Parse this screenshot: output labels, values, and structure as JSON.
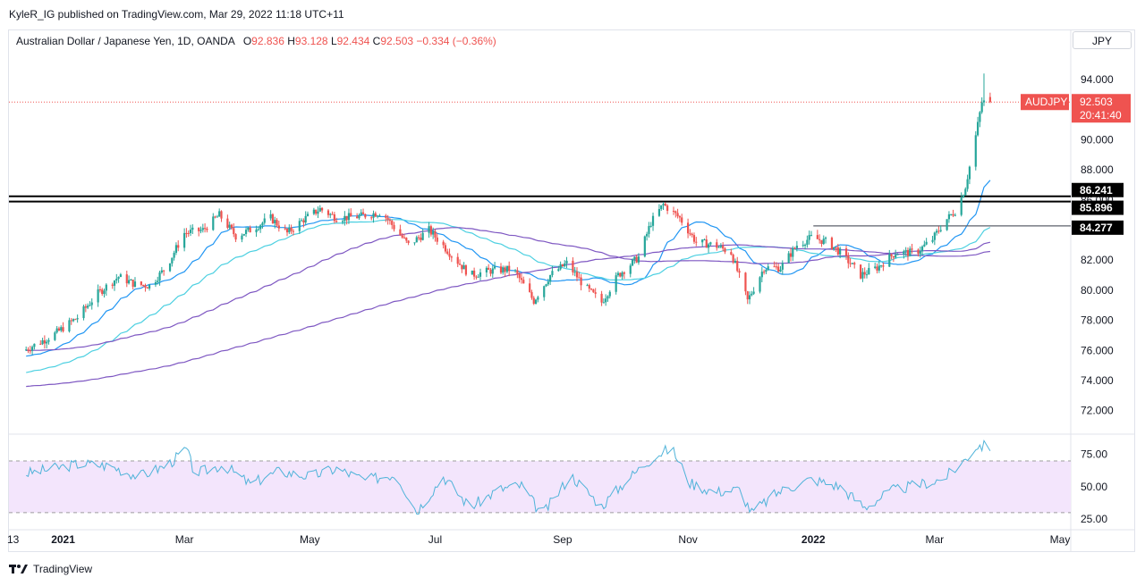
{
  "header": {
    "published": "KyleR_IG published on TradingView.com, Mar 29, 2022 11:18 UTC+11"
  },
  "legend": {
    "instrument": "Australian Dollar / Japanese Yen, 1D, OANDA",
    "o_label": "O",
    "o": "92.836",
    "h_label": "H",
    "h": "93.128",
    "l_label": "L",
    "l": "92.434",
    "c_label": "C",
    "c": "92.503",
    "change": "−0.334 (−0.36%)"
  },
  "currency_button": "JPY",
  "price_tag": {
    "symbol": "AUDJPY",
    "price": "92.503",
    "countdown": "20:41:40"
  },
  "footer": {
    "brand": "TradingView"
  },
  "colors": {
    "up": "#26a69a",
    "down": "#ef5350",
    "sma_fast": "#2196f3",
    "sma_mid": "#4dd0e1",
    "sma_slow": "#7e57c2",
    "rsi_line": "#4fb3d9",
    "rsi_band": "#f3e5fc"
  },
  "chart_data": [
    {
      "type": "candlestick",
      "title": "Australian Dollar / Japanese Yen, 1D, OANDA",
      "ylim": [
        70.5,
        95.9
      ],
      "y_ticks": [
        "94.000",
        "92.000",
        "90.000",
        "88.000",
        "86.000",
        "84.000",
        "82.000",
        "80.000",
        "78.000",
        "76.000",
        "74.000",
        "72.000"
      ],
      "x_ticks": [
        "13",
        "2021",
        "Mar",
        "May",
        "Jul",
        "Sep",
        "Nov",
        "2022",
        "Mar",
        "May"
      ],
      "horizontal_levels": [
        {
          "label": "86.241",
          "value": 86.241
        },
        {
          "label": "85.896",
          "value": 85.896
        },
        {
          "label": "84.277",
          "value": 84.277
        }
      ],
      "last_price": 92.503,
      "close_path": [
        [
          "2020-12-13",
          76.0
        ],
        [
          "2020-12-20",
          76.5
        ],
        [
          "2020-12-27",
          77.0
        ],
        [
          "2021-01-08",
          78.2
        ],
        [
          "2021-01-18",
          79.8
        ],
        [
          "2021-01-28",
          80.9
        ],
        [
          "2021-02-05",
          80.4
        ],
        [
          "2021-02-12",
          80.3
        ],
        [
          "2021-02-20",
          81.5
        ],
        [
          "2021-03-01",
          83.8
        ],
        [
          "2021-03-10",
          84.0
        ],
        [
          "2021-03-18",
          85.0
        ],
        [
          "2021-03-26",
          83.6
        ],
        [
          "2021-04-02",
          84.0
        ],
        [
          "2021-04-12",
          84.8
        ],
        [
          "2021-04-20",
          83.8
        ],
        [
          "2021-04-28",
          84.7
        ],
        [
          "2021-05-06",
          85.4
        ],
        [
          "2021-05-14",
          84.8
        ],
        [
          "2021-05-25",
          84.9
        ],
        [
          "2021-06-05",
          85.2
        ],
        [
          "2021-06-18",
          83.0
        ],
        [
          "2021-06-28",
          84.0
        ],
        [
          "2021-07-08",
          82.5
        ],
        [
          "2021-07-18",
          81.0
        ],
        [
          "2021-07-28",
          81.3
        ],
        [
          "2021-08-08",
          81.4
        ],
        [
          "2021-08-18",
          79.3
        ],
        [
          "2021-08-26",
          81.0
        ],
        [
          "2021-09-03",
          81.8
        ],
        [
          "2021-09-12",
          80.2
        ],
        [
          "2021-09-20",
          79.2
        ],
        [
          "2021-09-28",
          81.0
        ],
        [
          "2021-10-08",
          82.2
        ],
        [
          "2021-10-14",
          84.5
        ],
        [
          "2021-10-20",
          85.7
        ],
        [
          "2021-10-28",
          84.8
        ],
        [
          "2021-11-05",
          83.2
        ],
        [
          "2021-11-14",
          83.0
        ],
        [
          "2021-11-22",
          82.5
        ],
        [
          "2021-11-30",
          79.3
        ],
        [
          "2021-12-08",
          81.5
        ],
        [
          "2021-12-16",
          81.5
        ],
        [
          "2021-12-24",
          83.0
        ],
        [
          "2021-12-31",
          83.5
        ],
        [
          "2022-01-08",
          83.2
        ],
        [
          "2022-01-15",
          82.4
        ],
        [
          "2022-01-24",
          81.0
        ],
        [
          "2022-02-01",
          81.5
        ],
        [
          "2022-02-10",
          82.5
        ],
        [
          "2022-02-20",
          82.5
        ],
        [
          "2022-02-28",
          83.4
        ],
        [
          "2022-03-06",
          84.6
        ],
        [
          "2022-03-12",
          85.4
        ],
        [
          "2022-03-16",
          86.9
        ],
        [
          "2022-03-20",
          89.5
        ],
        [
          "2022-03-24",
          92.5
        ],
        [
          "2022-03-28",
          92.5
        ]
      ]
    },
    {
      "type": "line",
      "title": "RSI",
      "ylim": [
        17.5,
        90
      ],
      "y_ticks": [
        "75.00",
        "50.00",
        "25.00"
      ],
      "band": [
        30,
        70
      ],
      "rsi_path": [
        [
          "2020-12-13",
          60
        ],
        [
          "2020-12-27",
          64
        ],
        [
          "2021-01-10",
          68
        ],
        [
          "2021-01-24",
          66
        ],
        [
          "2021-02-07",
          58
        ],
        [
          "2021-02-21",
          67
        ],
        [
          "2021-03-02",
          79
        ],
        [
          "2021-03-06",
          60
        ],
        [
          "2021-03-20",
          67
        ],
        [
          "2021-04-02",
          52
        ],
        [
          "2021-04-16",
          62
        ],
        [
          "2021-05-01",
          58
        ],
        [
          "2021-05-14",
          64
        ],
        [
          "2021-05-28",
          55
        ],
        [
          "2021-06-12",
          60
        ],
        [
          "2021-06-22",
          31
        ],
        [
          "2021-07-05",
          58
        ],
        [
          "2021-07-18",
          34
        ],
        [
          "2021-08-01",
          48
        ],
        [
          "2021-08-12",
          51
        ],
        [
          "2021-08-22",
          28
        ],
        [
          "2021-09-05",
          59
        ],
        [
          "2021-09-20",
          35
        ],
        [
          "2021-10-02",
          55
        ],
        [
          "2021-10-16",
          74
        ],
        [
          "2021-10-24",
          80
        ],
        [
          "2021-11-02",
          53
        ],
        [
          "2021-11-14",
          46
        ],
        [
          "2021-11-26",
          48
        ],
        [
          "2021-12-02",
          30
        ],
        [
          "2021-12-15",
          46
        ],
        [
          "2021-12-31",
          56
        ],
        [
          "2022-01-14",
          50
        ],
        [
          "2022-01-26",
          34
        ],
        [
          "2022-02-08",
          47
        ],
        [
          "2022-02-22",
          52
        ],
        [
          "2022-03-05",
          56
        ],
        [
          "2022-03-14",
          68
        ],
        [
          "2022-03-22",
          82
        ],
        [
          "2022-03-28",
          81
        ]
      ]
    }
  ]
}
